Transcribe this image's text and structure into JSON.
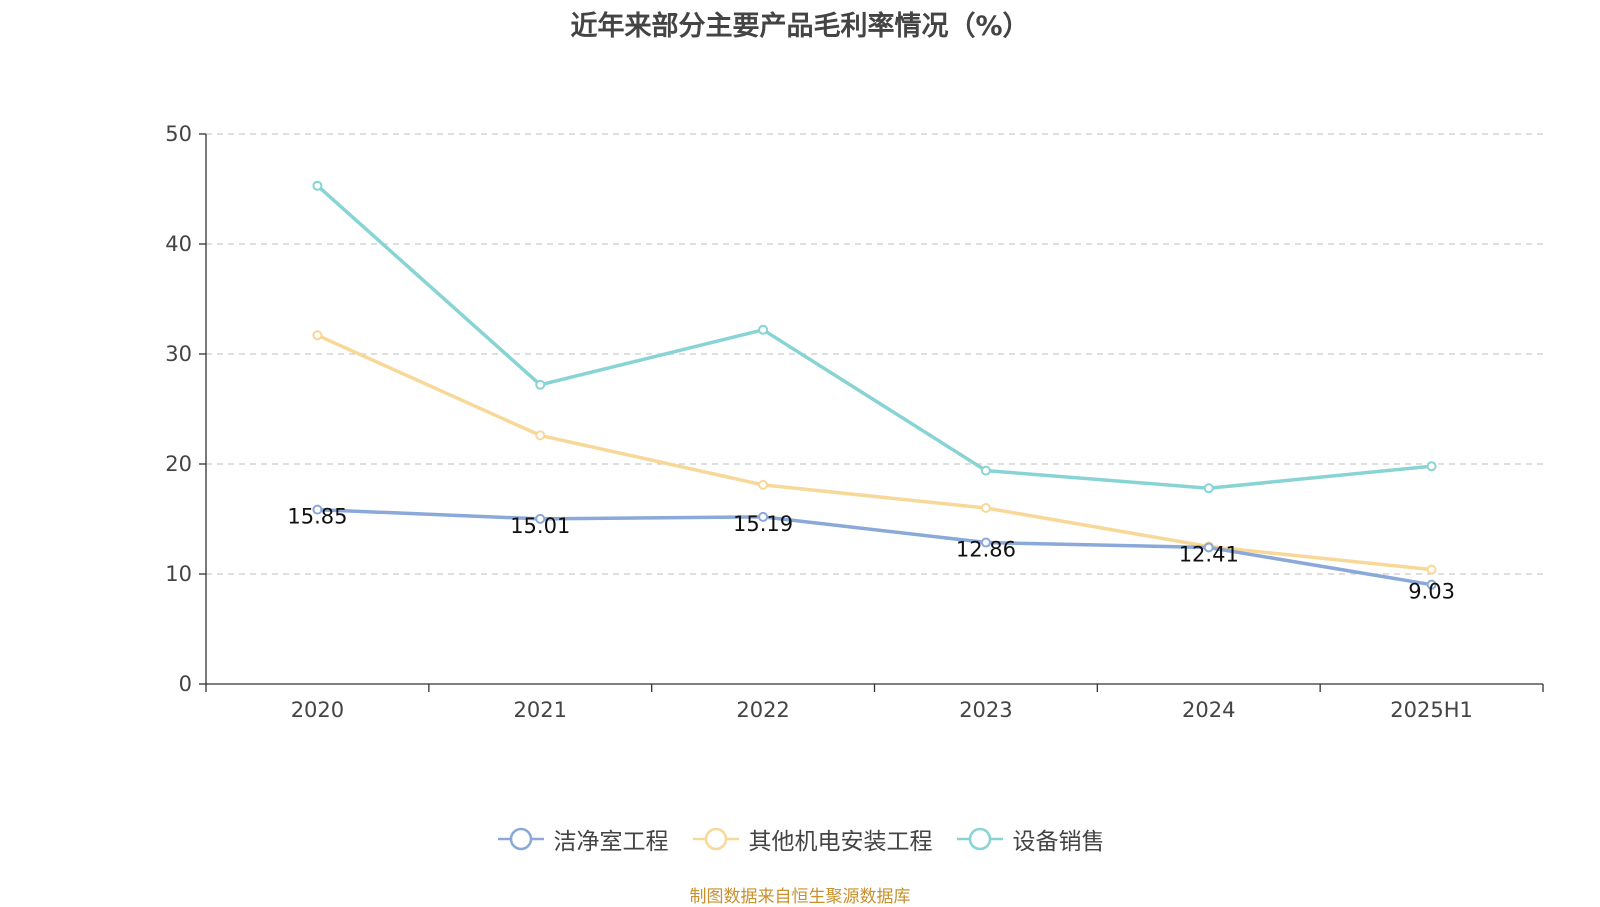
{
  "chart_data": {
    "type": "line",
    "title": "近年来部分主要产品毛利率情况（%）",
    "categories": [
      "2020",
      "2021",
      "2022",
      "2023",
      "2024",
      "2025H1"
    ],
    "ylim": [
      0,
      50
    ],
    "yticks": [
      0,
      10,
      20,
      30,
      40,
      50
    ],
    "grid": "horizontal-dashed",
    "legend_position": "bottom",
    "series": [
      {
        "name": "洁净室工程",
        "color": "#8aa8d8",
        "values": [
          15.85,
          15.01,
          15.19,
          12.86,
          12.41,
          9.03
        ],
        "labels": [
          "15.85",
          "15.01",
          "15.19",
          "12.86",
          "12.41",
          "9.03"
        ]
      },
      {
        "name": "其他机电安装工程",
        "color": "#f8d898",
        "values": [
          31.7,
          22.6,
          18.1,
          16.0,
          12.5,
          10.4
        ]
      },
      {
        "name": "设备销售",
        "color": "#88d4d4",
        "values": [
          45.3,
          27.2,
          32.2,
          19.4,
          17.8,
          19.8
        ]
      }
    ]
  },
  "source_note": "制图数据来自恒生聚源数据库"
}
